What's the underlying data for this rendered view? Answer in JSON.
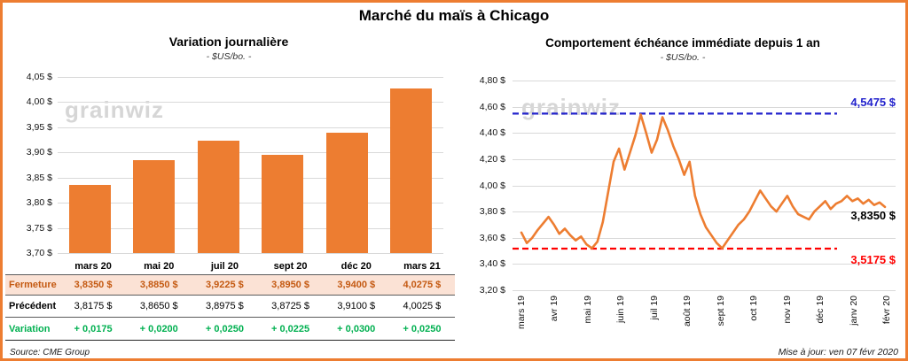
{
  "page": {
    "title": "Marché du maïs à Chicago",
    "source_note": "Source: CME Group",
    "update_note": "Mise à jour: ven 07 févr 2020",
    "watermark": "grainwiz"
  },
  "colors": {
    "accent_orange": "#ED7D31",
    "close_row_bg": "#FBE2D5",
    "close_row_text": "#C45911",
    "variation_green": "#00B050",
    "max_line_blue": "#2222CC",
    "min_line_red": "#FF0000",
    "gridline_gray": "#D9D9D9"
  },
  "chart_data": [
    {
      "type": "bar",
      "title": "Variation  journalière",
      "subtitle": "- $US/bo. -",
      "categories": [
        "mars 20",
        "mai 20",
        "juil 20",
        "sept 20",
        "déc 20",
        "mars 21"
      ],
      "values": [
        3.835,
        3.885,
        3.9225,
        3.895,
        3.94,
        4.0275
      ],
      "ylim": [
        3.7,
        4.05
      ],
      "ytick_labels": [
        "4,05 $",
        "4,00 $",
        "3,95 $",
        "3,90 $",
        "3,85 $",
        "3,80 $",
        "3,75 $",
        "3,70 $"
      ],
      "bar_color": "#ED7D31",
      "grid": true
    },
    {
      "type": "line",
      "title": "Comportement  échéance  immédiate  depuis 1 an",
      "subtitle": "- $US/bo. -",
      "x_labels": [
        "mars 19",
        "avr 19",
        "mai 19",
        "juin 19",
        "juil 19",
        "août 19",
        "sept 19",
        "oct 19",
        "nov 19",
        "déc 19",
        "janv 20",
        "févr 20"
      ],
      "values": [
        3.64,
        3.56,
        3.6,
        3.66,
        3.71,
        3.76,
        3.7,
        3.63,
        3.67,
        3.62,
        3.58,
        3.61,
        3.55,
        3.52,
        3.57,
        3.72,
        3.95,
        4.18,
        4.28,
        4.12,
        4.25,
        4.38,
        4.54,
        4.4,
        4.25,
        4.35,
        4.52,
        4.42,
        4.3,
        4.2,
        4.08,
        4.18,
        3.92,
        3.78,
        3.68,
        3.62,
        3.56,
        3.52,
        3.58,
        3.64,
        3.7,
        3.74,
        3.8,
        3.88,
        3.96,
        3.9,
        3.84,
        3.8,
        3.86,
        3.92,
        3.84,
        3.78,
        3.76,
        3.74,
        3.8,
        3.84,
        3.88,
        3.82,
        3.86,
        3.88,
        3.92,
        3.88,
        3.9,
        3.86,
        3.89,
        3.85,
        3.87,
        3.835
      ],
      "ylim": [
        3.2,
        4.8
      ],
      "ytick_labels": [
        "4,80 $",
        "4,60 $",
        "4,40 $",
        "4,20 $",
        "4,00 $",
        "3,80 $",
        "3,60 $",
        "3,40 $",
        "3,20 $"
      ],
      "line_color": "#ED7D31",
      "max_line": {
        "value": 4.5475,
        "label": "4,5475 $"
      },
      "min_line": {
        "value": 3.5175,
        "label": "3,5175 $"
      },
      "last_value": 3.835,
      "last_label": "3,8350 $",
      "grid": true,
      "legend_position": "none"
    }
  ],
  "table": {
    "rows": [
      {
        "label": "Fermeture",
        "values": [
          "3,8350  $",
          "3,8850  $",
          "3,9225  $",
          "3,8950  $",
          "3,9400  $",
          "4,0275  $"
        ]
      },
      {
        "label": "Précédent",
        "values": [
          "3,8175  $",
          "3,8650  $",
          "3,8975  $",
          "3,8725  $",
          "3,9100  $",
          "4,0025  $"
        ]
      },
      {
        "label": "Variation",
        "values": [
          "+ 0,0175",
          "+ 0,0200",
          "+ 0,0250",
          "+ 0,0225",
          "+ 0,0300",
          "+ 0,0250"
        ]
      }
    ]
  }
}
